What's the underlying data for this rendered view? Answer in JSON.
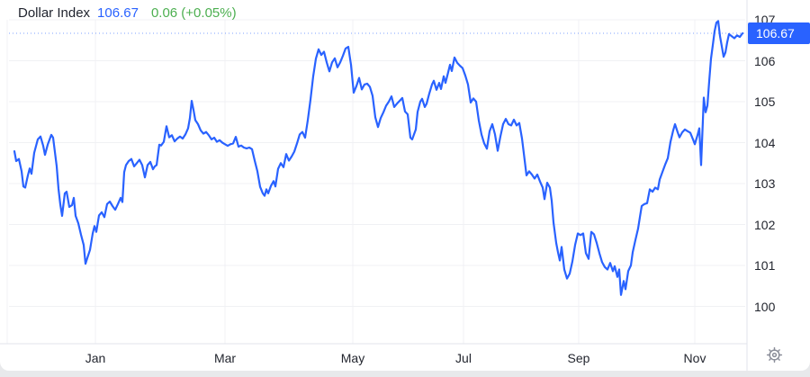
{
  "header": {
    "title": "Dollar Index",
    "price": "106.67",
    "change": "0.06 (+0.05%)"
  },
  "price_label": {
    "value": "106.67"
  },
  "toolbar": {
    "settings_icon": "gear"
  },
  "colors": {
    "line_blue": "#2962ff",
    "price_text_blue": "#2962ff",
    "change_green": "#4caf50",
    "title_text": "#1e222d",
    "axis_text": "#23262f",
    "gridline": "#f0f1f4",
    "axis_border": "#e0e3eb",
    "price_tag_bg": "#2962ff",
    "price_tag_text": "#ffffff",
    "gear_gray": "#8b8e99",
    "page_edge_gray": "#e8e9eb"
  },
  "chart_data": {
    "type": "line",
    "title": "Dollar Index",
    "last_price": 106.67,
    "change": "0.06",
    "change_pct": "+0.05%",
    "legend": [],
    "grid": true,
    "x_tick_labels": [
      "Jan",
      "Mar",
      "May",
      "Jul",
      "Sep",
      "Nov"
    ],
    "y_tick_values": [
      107,
      106,
      105,
      104,
      103,
      102,
      101,
      100
    ],
    "ylim": [
      99.9,
      107.1
    ],
    "series": [
      {
        "name": "Dollar Index",
        "points": [
          [
            16,
            103.79
          ],
          [
            18,
            103.55
          ],
          [
            21,
            103.6
          ],
          [
            24,
            103.3
          ],
          [
            26,
            102.93
          ],
          [
            28,
            102.9
          ],
          [
            31,
            103.2
          ],
          [
            33,
            103.37
          ],
          [
            35,
            103.24
          ],
          [
            38,
            103.75
          ],
          [
            42,
            104.08
          ],
          [
            45,
            104.15
          ],
          [
            48,
            103.92
          ],
          [
            50,
            103.7
          ],
          [
            53,
            103.95
          ],
          [
            57,
            104.19
          ],
          [
            59,
            104.12
          ],
          [
            63,
            103.42
          ],
          [
            65,
            102.87
          ],
          [
            67,
            102.49
          ],
          [
            69,
            102.21
          ],
          [
            72,
            102.76
          ],
          [
            74,
            102.8
          ],
          [
            77,
            102.43
          ],
          [
            80,
            102.47
          ],
          [
            82,
            102.65
          ],
          [
            84,
            102.21
          ],
          [
            87,
            102.03
          ],
          [
            90,
            101.75
          ],
          [
            93,
            101.5
          ],
          [
            95,
            101.04
          ],
          [
            97,
            101.18
          ],
          [
            100,
            101.38
          ],
          [
            103,
            101.78
          ],
          [
            105,
            101.96
          ],
          [
            107,
            101.82
          ],
          [
            110,
            102.22
          ],
          [
            113,
            102.3
          ],
          [
            116,
            102.18
          ],
          [
            119,
            102.5
          ],
          [
            122,
            102.56
          ],
          [
            125,
            102.45
          ],
          [
            128,
            102.36
          ],
          [
            131,
            102.5
          ],
          [
            134,
            102.65
          ],
          [
            136,
            102.55
          ],
          [
            138,
            103.28
          ],
          [
            140,
            103.45
          ],
          [
            143,
            103.55
          ],
          [
            146,
            103.6
          ],
          [
            149,
            103.42
          ],
          [
            152,
            103.5
          ],
          [
            155,
            103.58
          ],
          [
            158,
            103.45
          ],
          [
            161,
            103.15
          ],
          [
            164,
            103.45
          ],
          [
            167,
            103.53
          ],
          [
            170,
            103.35
          ],
          [
            172,
            103.42
          ],
          [
            174,
            103.45
          ],
          [
            177,
            103.95
          ],
          [
            179,
            103.93
          ],
          [
            182,
            104.02
          ],
          [
            185,
            104.4
          ],
          [
            188,
            104.13
          ],
          [
            191,
            104.18
          ],
          [
            194,
            104.03
          ],
          [
            197,
            104.1
          ],
          [
            200,
            104.15
          ],
          [
            203,
            104.1
          ],
          [
            206,
            104.2
          ],
          [
            209,
            104.35
          ],
          [
            211,
            104.6
          ],
          [
            213,
            105.02
          ],
          [
            215,
            104.8
          ],
          [
            217,
            104.55
          ],
          [
            220,
            104.45
          ],
          [
            223,
            104.3
          ],
          [
            226,
            104.22
          ],
          [
            229,
            104.26
          ],
          [
            232,
            104.18
          ],
          [
            235,
            104.08
          ],
          [
            238,
            104.12
          ],
          [
            241,
            104.02
          ],
          [
            244,
            104.06
          ],
          [
            247,
            104.0
          ],
          [
            250,
            103.96
          ],
          [
            253,
            103.92
          ],
          [
            256,
            103.96
          ],
          [
            259,
            103.98
          ],
          [
            262,
            104.14
          ],
          [
            265,
            103.9
          ],
          [
            268,
            103.93
          ],
          [
            271,
            103.88
          ],
          [
            274,
            103.86
          ],
          [
            277,
            103.88
          ],
          [
            280,
            103.84
          ],
          [
            283,
            103.56
          ],
          [
            286,
            103.3
          ],
          [
            289,
            102.92
          ],
          [
            292,
            102.76
          ],
          [
            294,
            102.7
          ],
          [
            296,
            102.86
          ],
          [
            298,
            102.76
          ],
          [
            301,
            102.94
          ],
          [
            304,
            103.06
          ],
          [
            306,
            102.93
          ],
          [
            309,
            103.36
          ],
          [
            312,
            103.5
          ],
          [
            315,
            103.4
          ],
          [
            318,
            103.72
          ],
          [
            321,
            103.56
          ],
          [
            324,
            103.66
          ],
          [
            327,
            103.78
          ],
          [
            330,
            103.98
          ],
          [
            333,
            104.2
          ],
          [
            336,
            104.26
          ],
          [
            339,
            104.12
          ],
          [
            342,
            104.55
          ],
          [
            345,
            105.05
          ],
          [
            348,
            105.62
          ],
          [
            351,
            106.05
          ],
          [
            354,
            106.28
          ],
          [
            357,
            106.14
          ],
          [
            360,
            106.22
          ],
          [
            363,
            105.96
          ],
          [
            366,
            105.74
          ],
          [
            369,
            105.96
          ],
          [
            372,
            106.06
          ],
          [
            375,
            105.84
          ],
          [
            378,
            105.96
          ],
          [
            381,
            106.12
          ],
          [
            384,
            106.3
          ],
          [
            387,
            106.34
          ],
          [
            390,
            105.9
          ],
          [
            393,
            105.22
          ],
          [
            396,
            105.38
          ],
          [
            399,
            105.58
          ],
          [
            402,
            105.3
          ],
          [
            405,
            105.42
          ],
          [
            408,
            105.44
          ],
          [
            411,
            105.36
          ],
          [
            414,
            105.14
          ],
          [
            417,
            104.62
          ],
          [
            420,
            104.38
          ],
          [
            423,
            104.6
          ],
          [
            426,
            104.74
          ],
          [
            429,
            104.9
          ],
          [
            432,
            105.0
          ],
          [
            435,
            105.13
          ],
          [
            438,
            104.87
          ],
          [
            441,
            104.95
          ],
          [
            444,
            105.02
          ],
          [
            447,
            105.09
          ],
          [
            450,
            104.76
          ],
          [
            453,
            104.69
          ],
          [
            456,
            104.12
          ],
          [
            458,
            104.08
          ],
          [
            460,
            104.2
          ],
          [
            462,
            104.32
          ],
          [
            464,
            104.75
          ],
          [
            467,
            105.0
          ],
          [
            469,
            105.07
          ],
          [
            472,
            104.87
          ],
          [
            474,
            104.95
          ],
          [
            477,
            105.2
          ],
          [
            480,
            105.42
          ],
          [
            482,
            105.51
          ],
          [
            485,
            105.29
          ],
          [
            488,
            105.46
          ],
          [
            490,
            105.31
          ],
          [
            493,
            105.62
          ],
          [
            495,
            105.46
          ],
          [
            498,
            105.72
          ],
          [
            500,
            105.9
          ],
          [
            502,
            105.75
          ],
          [
            505,
            106.08
          ],
          [
            508,
            105.95
          ],
          [
            511,
            105.88
          ],
          [
            514,
            105.82
          ],
          [
            517,
            105.64
          ],
          [
            520,
            105.42
          ],
          [
            523,
            104.98
          ],
          [
            526,
            105.08
          ],
          [
            529,
            105.0
          ],
          [
            532,
            104.54
          ],
          [
            535,
            104.2
          ],
          [
            538,
            103.98
          ],
          [
            541,
            103.85
          ],
          [
            544,
            104.28
          ],
          [
            547,
            104.45
          ],
          [
            550,
            104.2
          ],
          [
            553,
            103.8
          ],
          [
            556,
            104.15
          ],
          [
            559,
            104.45
          ],
          [
            562,
            104.58
          ],
          [
            565,
            104.45
          ],
          [
            568,
            104.42
          ],
          [
            571,
            104.56
          ],
          [
            574,
            104.42
          ],
          [
            577,
            104.48
          ],
          [
            580,
            104.1
          ],
          [
            582,
            103.74
          ],
          [
            585,
            103.2
          ],
          [
            588,
            103.3
          ],
          [
            591,
            103.22
          ],
          [
            594,
            103.12
          ],
          [
            597,
            103.22
          ],
          [
            600,
            103.05
          ],
          [
            603,
            102.9
          ],
          [
            605,
            102.62
          ],
          [
            608,
            103.02
          ],
          [
            611,
            102.9
          ],
          [
            613,
            102.58
          ],
          [
            615,
            102.05
          ],
          [
            618,
            101.55
          ],
          [
            620,
            101.32
          ],
          [
            622,
            101.12
          ],
          [
            624,
            101.45
          ],
          [
            627,
            100.9
          ],
          [
            630,
            100.68
          ],
          [
            633,
            100.8
          ],
          [
            636,
            101.1
          ],
          [
            639,
            101.5
          ],
          [
            642,
            101.78
          ],
          [
            645,
            101.74
          ],
          [
            648,
            101.78
          ],
          [
            651,
            101.3
          ],
          [
            654,
            101.16
          ],
          [
            657,
            101.82
          ],
          [
            660,
            101.76
          ],
          [
            663,
            101.55
          ],
          [
            666,
            101.3
          ],
          [
            669,
            101.08
          ],
          [
            672,
            100.96
          ],
          [
            675,
            100.9
          ],
          [
            678,
            101.06
          ],
          [
            681,
            100.86
          ],
          [
            683,
            100.98
          ],
          [
            686,
            100.72
          ],
          [
            688,
            100.9
          ],
          [
            690,
            100.28
          ],
          [
            693,
            100.62
          ],
          [
            695,
            100.42
          ],
          [
            698,
            100.86
          ],
          [
            701,
            101.0
          ],
          [
            703,
            101.32
          ],
          [
            706,
            101.62
          ],
          [
            709,
            101.9
          ],
          [
            711,
            102.18
          ],
          [
            713,
            102.45
          ],
          [
            716,
            102.5
          ],
          [
            719,
            102.52
          ],
          [
            722,
            102.86
          ],
          [
            725,
            102.8
          ],
          [
            728,
            102.9
          ],
          [
            731,
            102.86
          ],
          [
            733,
            103.1
          ],
          [
            736,
            103.28
          ],
          [
            739,
            103.46
          ],
          [
            742,
            103.62
          ],
          [
            745,
            104.02
          ],
          [
            748,
            104.3
          ],
          [
            750,
            104.45
          ],
          [
            753,
            104.25
          ],
          [
            755,
            104.13
          ],
          [
            758,
            104.25
          ],
          [
            761,
            104.32
          ],
          [
            764,
            104.28
          ],
          [
            767,
            104.24
          ],
          [
            770,
            104.08
          ],
          [
            772,
            103.96
          ],
          [
            775,
            104.18
          ],
          [
            777,
            104.35
          ],
          [
            779,
            103.45
          ],
          [
            782,
            105.1
          ],
          [
            784,
            104.74
          ],
          [
            786,
            104.9
          ],
          [
            788,
            105.5
          ],
          [
            790,
            106.05
          ],
          [
            792,
            106.38
          ],
          [
            794,
            106.72
          ],
          [
            796,
            106.93
          ],
          [
            798,
            106.97
          ],
          [
            800,
            106.6
          ],
          [
            802,
            106.35
          ],
          [
            804,
            106.1
          ],
          [
            806,
            106.2
          ],
          [
            808,
            106.45
          ],
          [
            810,
            106.65
          ],
          [
            813,
            106.6
          ],
          [
            816,
            106.55
          ],
          [
            819,
            106.62
          ],
          [
            822,
            106.58
          ],
          [
            825,
            106.67
          ]
        ]
      }
    ]
  }
}
